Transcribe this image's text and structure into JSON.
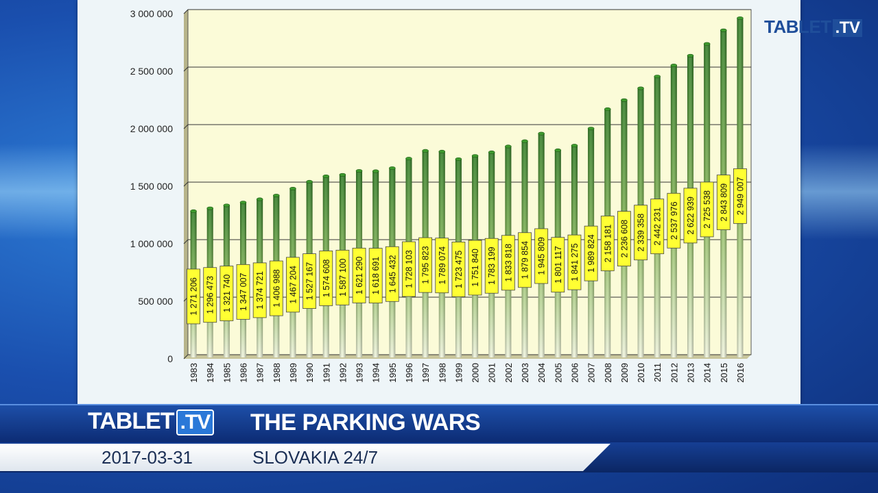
{
  "logo": {
    "brand": "TABLET",
    "tld": ".TV"
  },
  "lower_third": {
    "title": "THE PARKING WARS",
    "date": "2017-03-31",
    "channel": "SLOVAKIA 24/7"
  },
  "colors": {
    "bar_top": "#2f7d22",
    "bar_bottom": "#f2f7de",
    "label_fill": "#ffff33",
    "plot_bg": "#fbfbd8",
    "brand_blue": "#1f4e9a"
  },
  "chart_data": {
    "type": "bar",
    "title": "",
    "xlabel": "",
    "ylabel": "",
    "ylim": [
      0,
      3000000
    ],
    "yticks": [
      0,
      500000,
      1000000,
      1500000,
      2000000,
      2500000,
      3000000
    ],
    "ytick_labels": [
      "0",
      "500 000",
      "1 000 000",
      "1 500 000",
      "2 000 000",
      "2 500 000",
      "3 000 000"
    ],
    "grid": true,
    "categories": [
      "1983",
      "1984",
      "1985",
      "1986",
      "1987",
      "1988",
      "1989",
      "1990",
      "1991",
      "1992",
      "1993",
      "1994",
      "1995",
      "1996",
      "1997",
      "1998",
      "1999",
      "2000",
      "2001",
      "2002",
      "2003",
      "2004",
      "2005",
      "2006",
      "2007",
      "2008",
      "2009",
      "2010",
      "2011",
      "2012",
      "2013",
      "2014",
      "2015",
      "2016"
    ],
    "values": [
      1271206,
      1296473,
      1321740,
      1347007,
      1374721,
      1406988,
      1467204,
      1527167,
      1574608,
      1587100,
      1621290,
      1618691,
      1645432,
      1728103,
      1795823,
      1789074,
      1723475,
      1751840,
      1783199,
      1833818,
      1879854,
      1945809,
      1801117,
      1841275,
      1989824,
      2158181,
      2236608,
      2339358,
      2442231,
      2537976,
      2622939,
      2725538,
      2843809,
      2949007
    ],
    "data_labels": [
      "1 271 206",
      "1 296 473",
      "1 321 740",
      "1 347 007",
      "1 374 721",
      "1 406 988",
      "1 467 204",
      "1 527 167",
      "1 574 608",
      "1 587 100",
      "1 621 290",
      "1 618 691",
      "1 645 432",
      "1 728 103",
      "1 795 823",
      "1 789 074",
      "1 723 475",
      "1 751 840",
      "1 783 199",
      "1 833 818",
      "1 879 854",
      "1 945 809",
      "1 801 117",
      "1 841 275",
      "1 989 824",
      "2 158 181",
      "2 236 608",
      "2 339 358",
      "2 442 231",
      "2 537 976",
      "2 622 939",
      "2 725 538",
      "2 843 809",
      "2 949 007"
    ]
  }
}
